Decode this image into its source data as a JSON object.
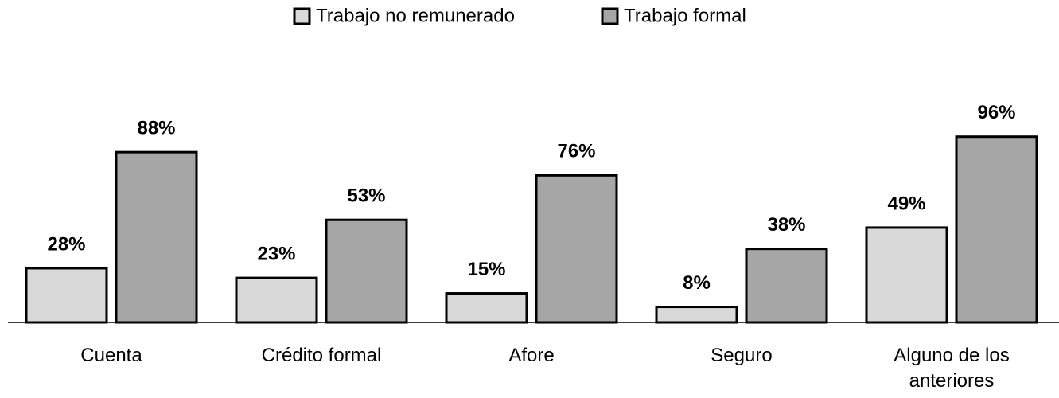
{
  "chart_data": {
    "type": "bar",
    "categories": [
      "Cuenta",
      "Crédito formal",
      "Afore",
      "Seguro",
      "Alguno de los anteriores"
    ],
    "series": [
      {
        "name": "Trabajo no remunerado",
        "color": "#d9d9d9",
        "values": [
          28,
          23,
          15,
          8,
          49
        ],
        "value_labels": [
          "28%",
          "23%",
          "15%",
          "8%",
          "49%"
        ]
      },
      {
        "name": "Trabajo formal",
        "color": "#a6a6a6",
        "values": [
          88,
          53,
          76,
          38,
          96
        ],
        "value_labels": [
          "88%",
          "53%",
          "76%",
          "38%",
          "96%"
        ]
      }
    ],
    "ylim": [
      0,
      100
    ],
    "legend": "top"
  }
}
